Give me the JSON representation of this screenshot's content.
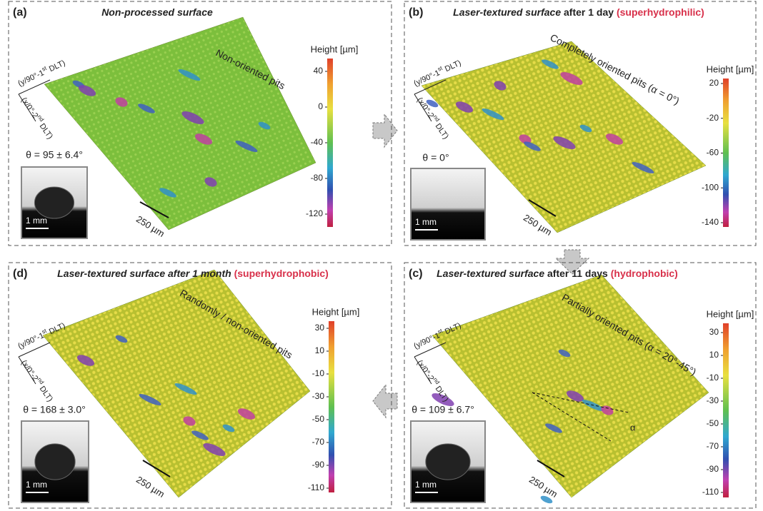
{
  "panels": [
    {
      "label": "(a)",
      "title": [
        {
          "text": "Non-processed surface",
          "style": "bi"
        }
      ],
      "pits_label": "Non-oriented pits",
      "y_axis": {
        "pre": "(y/90°-1",
        "sup": "st",
        "post": " DLT)"
      },
      "x_axis": {
        "pre": "(x/0°-2",
        "sup": "nd",
        "post": " DLT)"
      },
      "scale_bar": "250 µm",
      "contact_angle": "θ = 95 ± 6.4°",
      "inset_scale": "1 mm",
      "colorbar": {
        "title": "Height [µm]",
        "ticks": [
          "40",
          "0",
          "-40",
          "-80",
          "-120"
        ]
      }
    },
    {
      "label": "(b)",
      "title": [
        {
          "text": "Laser-textured surface",
          "style": "bi"
        },
        {
          "text": " after 1 day ",
          "style": "b"
        },
        {
          "text": "(superhydrophilic)",
          "style": "red"
        }
      ],
      "pits_label": "Completely oriented pits (α = 0°)",
      "y_axis": {
        "pre": "(y/90°-1",
        "sup": "st",
        "post": " DLT)"
      },
      "x_axis": {
        "pre": "(x/0°-2",
        "sup": "nd",
        "post": " DLT)"
      },
      "scale_bar": "250 µm",
      "contact_angle": "θ = 0°",
      "inset_scale": "1 mm",
      "colorbar": {
        "title": "Height [µm]",
        "ticks": [
          "20",
          "-20",
          "-60",
          "-100",
          "-140"
        ]
      }
    },
    {
      "label": "(d)",
      "title": [
        {
          "text": "Laser-textured surface after 1 month",
          "style": "bi"
        },
        {
          "text": "  (superhydrophobic)",
          "style": "red"
        }
      ],
      "pits_label": "Randomly / non-oriented pits",
      "y_axis": {
        "pre": "(y/90°-1",
        "sup": "st",
        "post": " DLT)"
      },
      "x_axis": {
        "pre": "(x/0°-2",
        "sup": "nd",
        "post": " DLT)"
      },
      "scale_bar": "250 µm",
      "contact_angle": "θ = 168 ± 3.0°",
      "inset_scale": "1 mm",
      "colorbar": {
        "title": "Height [µm]",
        "ticks": [
          "30",
          "10",
          "-10",
          "-30",
          "-50",
          "-70",
          "-90",
          "-110"
        ]
      }
    },
    {
      "label": "(c)",
      "title": [
        {
          "text": "Laser-textured surface",
          "style": "bi"
        },
        {
          "text": " after 11 days ",
          "style": "b"
        },
        {
          "text": "(hydrophobic)",
          "style": "red"
        }
      ],
      "pits_label": "Partially oriented pits (α = 20°-45°)",
      "y_axis": {
        "pre": "(y/90°-1",
        "sup": "st",
        "post": " DLT)"
      },
      "x_axis": {
        "pre": "(x/0°-2",
        "sup": "nd",
        "post": " DLT)"
      },
      "scale_bar": "250 µm",
      "contact_angle": "θ = 109 ± 6.7°",
      "inset_scale": "1 mm",
      "angle_symbol": "α",
      "colorbar": {
        "title": "Height [µm]",
        "ticks": [
          "30",
          "10",
          "-10",
          "-30",
          "-50",
          "-70",
          "-90",
          "-110"
        ]
      }
    }
  ]
}
